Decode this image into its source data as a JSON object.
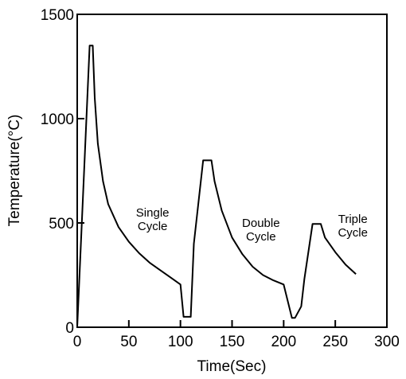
{
  "chart_data": {
    "type": "line",
    "title": "",
    "xlabel": "Time(Sec)",
    "ylabel": "Temperature(°C)",
    "xlim": [
      0,
      300
    ],
    "ylim": [
      0,
      1500
    ],
    "xticks": [
      "0",
      "50",
      "100",
      "150",
      "200",
      "250",
      "300"
    ],
    "yticks": [
      "0",
      "500",
      "1000",
      "1500"
    ],
    "grid": false,
    "legend": "none",
    "line_color": "#000000",
    "series": [
      {
        "x": [
          0,
          12,
          15,
          17,
          20,
          25,
          30,
          40,
          50,
          60,
          70,
          80,
          90,
          100,
          103,
          110,
          113,
          122,
          130,
          133,
          140,
          150,
          160,
          170,
          180,
          190,
          200,
          208,
          211,
          217,
          220,
          228,
          236,
          240,
          250,
          260,
          270
        ],
        "y": [
          0,
          1350,
          1350,
          1100,
          880,
          700,
          590,
          480,
          410,
          355,
          310,
          275,
          240,
          205,
          50,
          50,
          400,
          800,
          800,
          700,
          560,
          430,
          350,
          290,
          250,
          225,
          205,
          45,
          45,
          100,
          230,
          495,
          495,
          430,
          360,
          300,
          255
        ]
      }
    ],
    "annotations": [
      {
        "lines": [
          "Single",
          "Cycle"
        ],
        "x": 73,
        "y": 530
      },
      {
        "lines": [
          "Double",
          "Cycle"
        ],
        "x": 178,
        "y": 480
      },
      {
        "lines": [
          "Triple",
          "Cycle"
        ],
        "x": 267,
        "y": 500
      }
    ]
  }
}
